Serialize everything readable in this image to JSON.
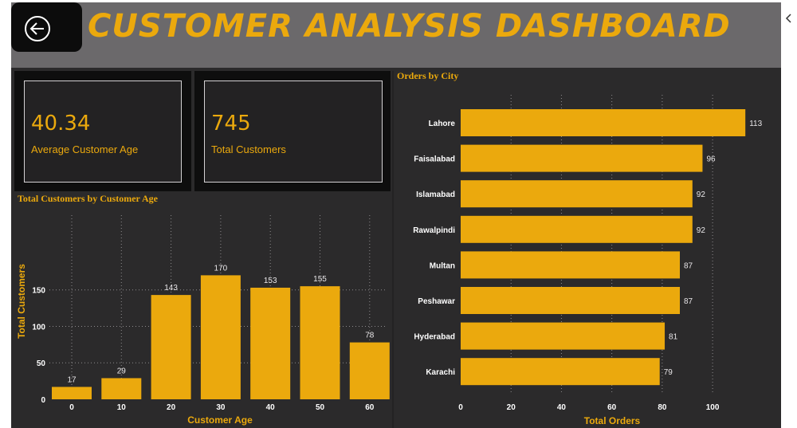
{
  "header": {
    "title": "CUSTOMER ANALYSIS DASHBOARD",
    "back_icon": "arrow-left-circle-icon"
  },
  "kpis": [
    {
      "value": "40.34",
      "label": "Average Customer Age"
    },
    {
      "value": "745",
      "label": "Total Customers"
    }
  ],
  "colors": {
    "accent": "#eba90d",
    "background": "#2b2a2b",
    "header": "#6b696b",
    "label_text": "#ffffff"
  },
  "chart_data": [
    {
      "type": "bar",
      "title": "Total Customers by Customer Age",
      "xlabel": "Customer Age",
      "ylabel": "Total Customers",
      "x": [
        0,
        10,
        20,
        30,
        40,
        50,
        60
      ],
      "values": [
        17,
        29,
        143,
        170,
        153,
        155,
        78
      ],
      "x_ticks": [
        "0",
        "10",
        "20",
        "30",
        "40",
        "50",
        "60"
      ],
      "y_ticks": [
        "0",
        "50",
        "100",
        "150"
      ],
      "ylim": [
        0,
        180
      ],
      "grid": true
    },
    {
      "type": "bar",
      "orientation": "horizontal",
      "title": "Orders by City",
      "xlabel": "Total Orders",
      "categories": [
        "Lahore",
        "Faisalabad",
        "Islamabad",
        "Rawalpindi",
        "Multan",
        "Peshawar",
        "Hyderabad",
        "Karachi"
      ],
      "values": [
        113,
        96,
        92,
        92,
        87,
        87,
        81,
        79
      ],
      "x_ticks": [
        "0",
        "20",
        "40",
        "60",
        "80",
        "100"
      ],
      "xlim": [
        0,
        113
      ],
      "grid": true
    }
  ]
}
